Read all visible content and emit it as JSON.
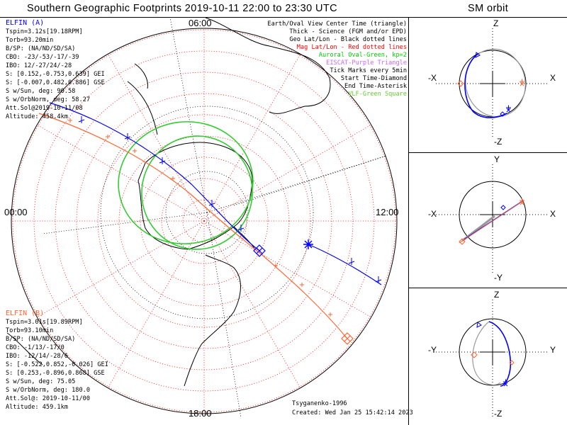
{
  "header": {
    "title": "Southern Geographic Footprints 2019-10-11 22:00 to 23:30 UTC",
    "sm_title": "SM orbit"
  },
  "clock_labels": {
    "top": "06:00",
    "left": "00:00",
    "right": "12:00",
    "bottom": "18:00"
  },
  "legend": [
    {
      "text": "Earth/Oval View Center Time (triangle)",
      "color": "#000000"
    },
    {
      "text": "Thick - Science (FGM and/or EPD)",
      "color": "#000000"
    },
    {
      "text": "Geo Lat/Lon - Black dotted lines",
      "color": "#000000"
    },
    {
      "text": "Mag Lat/Lon - Red dotted lines",
      "color": "#ff0000"
    },
    {
      "text": "Auroral Oval-Green, kp=2",
      "color": "#00cc00"
    },
    {
      "text": "EISCAT-Purple Triangle",
      "color": "#cc66ff"
    },
    {
      "text": "Tick Marks every 5min",
      "color": "#000000"
    },
    {
      "text": "Start Time-Diamond",
      "color": "#000000"
    },
    {
      "text": "End Time-Asterisk",
      "color": "#000000"
    },
    {
      "text": "VLF-Green Square",
      "color": "#66cc33"
    }
  ],
  "elfin_a": {
    "name": "ELFIN (A)",
    "color": "#0000ff",
    "lines": [
      "Tspin=3.12s[19.18RPM]",
      "Torb=93.20min",
      "B/SP: (NA/ND/SD/SA)",
      "CBO: -23/-53/-17/-39",
      "IBO: 12/-27/24/-28",
      "S: [0.152,-0.753,0.639] GEI",
      "S: [-0.007,0.482,0.886] GSE",
      "S w/Sun, deg: 90.58",
      "S w/OrbNorm, deg: 58.27",
      "Att.Sol@2019-10-11/08",
      "Altitude: 458.4km"
    ]
  },
  "elfin_b": {
    "name": "ELFIN (B)",
    "color": "#ff6633",
    "lines": [
      "Tspin=3.01s[19.89RPM]",
      "Torb=93.10min",
      "B/SP: (NA/ND/SD/SA)",
      "CBO: -1/13/-17/0",
      "IBO: -12/14/-28/6",
      "S: [-0.522,0.852,-0.026] GEI",
      "S: [0.253,-0.896,0.868] GSE",
      "S w/Sun, deg: 75.05",
      "S w/OrbNorm, deg: 180.0",
      "Att.Sol@: 2019-10-11/00",
      "Altitude: 459.1km"
    ]
  },
  "footer": {
    "model": "Tsyganenko-1996",
    "created": "Created: Wed Jan 25 15:42:14 2023"
  },
  "sm_panels": [
    {
      "top": "Z",
      "bottom": "-Z",
      "left": "-X",
      "right": "X"
    },
    {
      "top": "Y",
      "bottom": "-Y",
      "left": "-X",
      "right": "X"
    },
    {
      "top": "Z",
      "bottom": "-Z",
      "left": "-Y",
      "right": "Y"
    }
  ],
  "colors": {
    "elfin_a": "#0000ff",
    "elfin_b": "#ff6633",
    "mag_grid": "#ff0000",
    "geo_grid": "#000000",
    "auroral_oval": "#33cc33"
  }
}
